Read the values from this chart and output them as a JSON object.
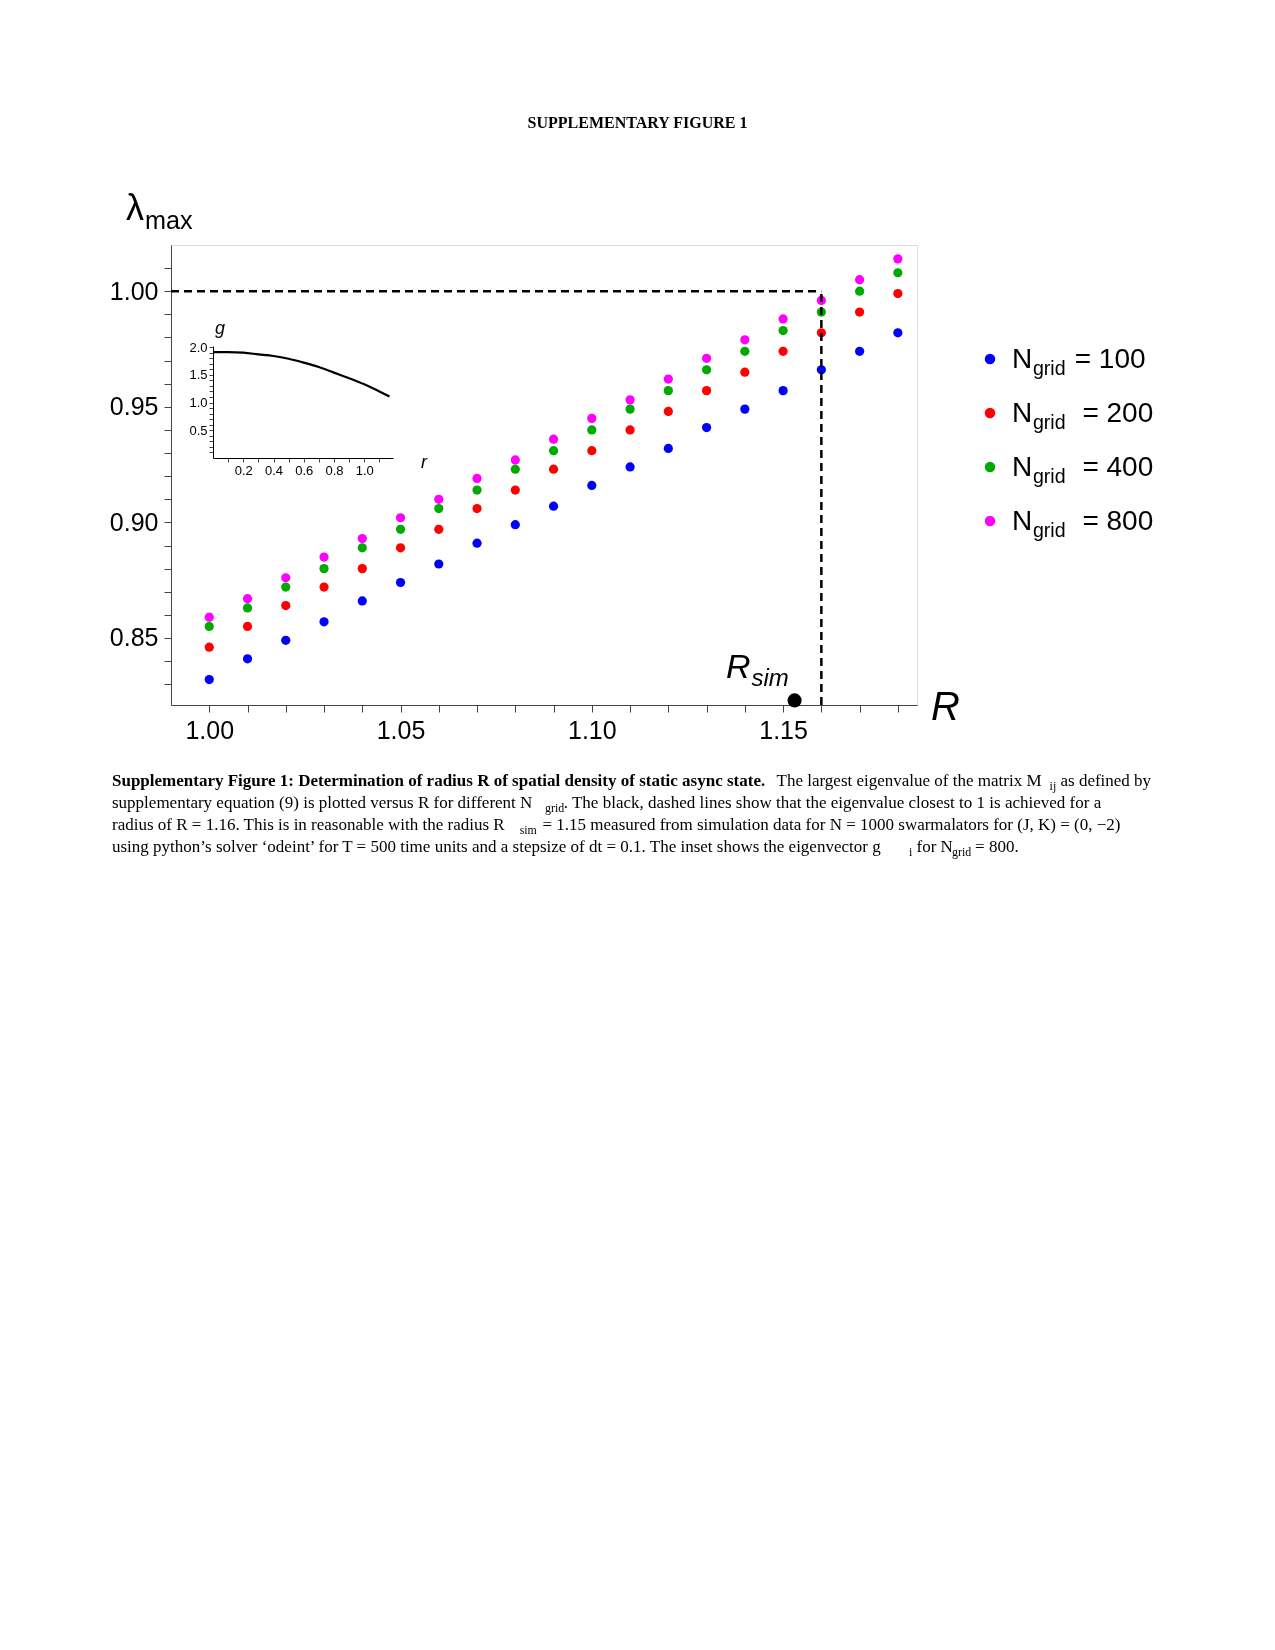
{
  "chart_data": [
    {
      "type": "scatter",
      "title": "SUPPLEMENTARY FIGURE 1",
      "xlabel": "R",
      "ylabel": "λ$_{max}$",
      "x": [
        1.0,
        1.01,
        1.02,
        1.03,
        1.04,
        1.05,
        1.06,
        1.07,
        1.08,
        1.09,
        1.1,
        1.11,
        1.12,
        1.13,
        1.14,
        1.15,
        1.16,
        1.17,
        1.18
      ],
      "series": [
        {
          "name": "N$_{grid}$ = 100",
          "color": "#0000ff",
          "values": [
            0.832,
            0.841,
            0.849,
            0.857,
            0.866,
            0.874,
            0.882,
            0.891,
            0.899,
            0.907,
            0.916,
            0.924,
            0.932,
            0.941,
            0.949,
            0.957,
            0.966,
            0.974,
            0.982
          ]
        },
        {
          "name": "N$_{grid}$  = 200",
          "color": "#ff0000",
          "values": [
            0.846,
            0.855,
            0.864,
            0.872,
            0.88,
            0.889,
            0.897,
            0.906,
            0.914,
            0.923,
            0.931,
            0.94,
            0.948,
            0.957,
            0.965,
            0.974,
            0.982,
            0.991,
            0.999
          ]
        },
        {
          "name": "N$_{grid}$  = 400",
          "color": "#00aa00",
          "values": [
            0.855,
            0.863,
            0.872,
            0.88,
            0.889,
            0.897,
            0.906,
            0.914,
            0.923,
            0.931,
            0.94,
            0.949,
            0.957,
            0.966,
            0.974,
            0.983,
            0.991,
            1.0,
            1.008
          ]
        },
        {
          "name": "N$_{grid}$  = 800",
          "color": "#ff00ff",
          "values": [
            0.859,
            0.867,
            0.876,
            0.885,
            0.893,
            0.902,
            0.91,
            0.919,
            0.927,
            0.936,
            0.945,
            0.953,
            0.962,
            0.971,
            0.979,
            0.988,
            0.996,
            1.005,
            1.014
          ]
        },
        {
          "x": [
            1.153
          ],
          "color": "#000000",
          "values": [
            0.823
          ]
        }
      ],
      "xlim": [
        0.99,
        1.185
      ],
      "ylim": [
        0.821,
        1.02
      ],
      "xticks": [
        {
          "value": 1.0,
          "label": "1.00"
        },
        {
          "value": 1.01,
          "label": null
        },
        {
          "value": 1.02,
          "label": null
        },
        {
          "value": 1.03,
          "label": null
        },
        {
          "value": 1.04,
          "label": null
        },
        1.05,
        {
          "value": 1.06,
          "label": null
        },
        {
          "value": 1.07,
          "label": null
        },
        {
          "value": 1.08,
          "label": null
        },
        {
          "value": 1.09,
          "label": null
        },
        {
          "value": 1.1,
          "label": "1.10"
        },
        {
          "value": 1.11,
          "label": null
        },
        {
          "value": 1.12,
          "label": null
        },
        {
          "value": 1.13,
          "label": null
        },
        {
          "value": 1.14,
          "label": null
        },
        1.15,
        {
          "value": 1.16,
          "label": null
        },
        {
          "value": 1.17,
          "label": null
        },
        {
          "value": 1.18,
          "label": null
        }
      ],
      "yticks": [
        {
          "value": 0.83,
          "label": null
        },
        {
          "value": 0.84,
          "label": null
        },
        0.85,
        {
          "value": 0.86,
          "label": null
        },
        {
          "value": 0.87,
          "label": null
        },
        {
          "value": 0.88,
          "label": null
        },
        {
          "value": 0.89,
          "label": null
        },
        {
          "value": 0.9,
          "label": "0.90"
        },
        {
          "value": 0.91,
          "label": null
        },
        {
          "value": 0.92,
          "label": null
        },
        {
          "value": 0.93,
          "label": null
        },
        {
          "value": 0.94,
          "label": null
        },
        0.95,
        {
          "value": 0.96,
          "label": null
        },
        {
          "value": 0.97,
          "label": null
        },
        {
          "value": 0.98,
          "label": null
        },
        {
          "value": 0.99,
          "label": null
        },
        {
          "value": 1.0,
          "label": "1.00"
        },
        {
          "value": 1.01,
          "label": null
        }
      ],
      "ref_lines": [
        {
          "axis": "y",
          "value": 1.0,
          "color": "#000000",
          "line_style": "dashed"
        },
        {
          "axis": "x",
          "value": 1.16,
          "color": "#000000",
          "line_style": "dashed"
        }
      ],
      "annotations": [
        {
          "text": "R$_{sim}$",
          "x": 1.153,
          "y": 0.823
        },
        "Supplementary Figure 1: Determination of radius R of spatial density of static async state.",
        "The largest eigenvalue of the matrix M$_{ij}$ as defined by supplementary equation (9) is plotted versus R for different N$_{grid}$. The black, dashed lines show that the eigenvalue closest to 1 is achieved for a radius of R = 1.16. This is in reasonable with the radius R$_{sim}$ = 1.15 measured from simulation data for N = 1000 swarmalators for (J, K) = (0, −2) using python’s solver ‘odeint’ for T = 500 time units and a stepsize of dt = 0.1. The inset shows the eigenvector g$_{i}$ for N$_{grid}$ = 800."
      ],
      "legend": "right",
      "marker": "circle"
    },
    {
      "type": "line",
      "xlabel": "r",
      "ylabel": "g",
      "color": "#000000",
      "line_style": "solid",
      "x": [
        0,
        0.1,
        0.2,
        0.3,
        0.4,
        0.5,
        0.6,
        0.7,
        0.8,
        0.9,
        1.0,
        1.1,
        1.167
      ],
      "values": [
        1.91,
        1.91,
        1.9,
        1.87,
        1.84,
        1.79,
        1.72,
        1.64,
        1.54,
        1.44,
        1.33,
        1.2,
        1.11
      ],
      "xlim": [
        0,
        1.19
      ],
      "ylim": [
        0,
        2.02
      ],
      "xticks": [
        {
          "value": 0.1,
          "label": null
        },
        0.2,
        {
          "value": 0.3,
          "label": null
        },
        0.4,
        {
          "value": 0.5,
          "label": null
        },
        0.6,
        {
          "value": 0.7,
          "label": null
        },
        0.8,
        {
          "value": 0.9,
          "label": null
        },
        {
          "value": 1.0,
          "label": "1.0"
        },
        {
          "value": 1.1,
          "label": null
        }
      ],
      "yticks": [
        {
          "value": 0.1,
          "label": null
        },
        {
          "value": 0.2,
          "label": null
        },
        {
          "value": 0.3,
          "label": null
        },
        {
          "value": 0.4,
          "label": null
        },
        0.5,
        {
          "value": 0.6,
          "label": null
        },
        {
          "value": 0.7,
          "label": null
        },
        {
          "value": 0.8,
          "label": null
        },
        {
          "value": 0.9,
          "label": null
        },
        {
          "value": 1.0,
          "label": "1.0"
        },
        {
          "value": 1.1,
          "label": null
        },
        {
          "value": 1.2,
          "label": null
        },
        {
          "value": 1.3,
          "label": null
        },
        {
          "value": 1.4,
          "label": null
        },
        1.5,
        {
          "value": 1.6,
          "label": null
        },
        {
          "value": 1.7,
          "label": null
        },
        {
          "value": 1.8,
          "label": null
        },
        {
          "value": 1.9,
          "label": null
        },
        {
          "value": 2.0,
          "label": "2.0"
        }
      ]
    }
  ]
}
